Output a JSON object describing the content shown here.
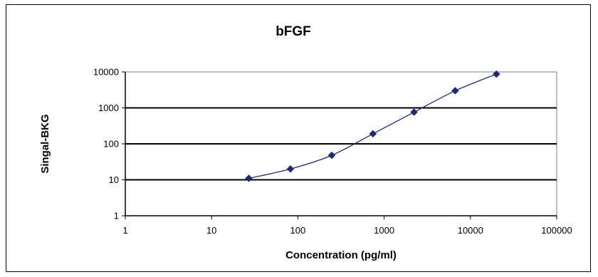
{
  "chart_data": {
    "type": "scatter",
    "title": "bFGF",
    "xlabel": "Concentration (pg/ml)",
    "ylabel": "Singal-BKG",
    "x_scale": "log",
    "y_scale": "log",
    "xlim": [
      1,
      100000
    ],
    "ylim": [
      1,
      10000
    ],
    "x_tick_labels": [
      "1",
      "10",
      "100",
      "1000",
      "10000",
      "100000"
    ],
    "y_tick_labels": [
      "1",
      "10",
      "100",
      "1000",
      "10000"
    ],
    "x_ticks": [
      1,
      10,
      100,
      1000,
      10000,
      100000
    ],
    "y_ticks": [
      1,
      10,
      100,
      1000,
      10000
    ],
    "grid": "horizontal",
    "legend": "none",
    "series": [
      {
        "color": "#1f2a7a",
        "marker": "diamond",
        "line": "smooth",
        "x": [
          27,
          82,
          247,
          741,
          2222,
          6667,
          20000
        ],
        "y": [
          11,
          20,
          48,
          190,
          760,
          3000,
          8700
        ]
      }
    ]
  }
}
